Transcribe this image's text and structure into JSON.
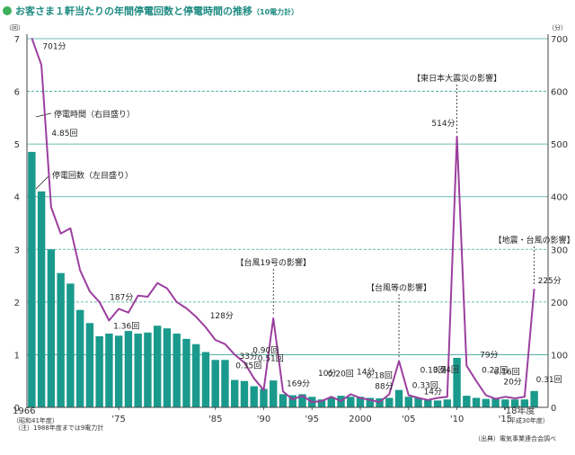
{
  "title": "お客さま１軒当たりの年間停電回数と停電時間の推移",
  "title_note": "（10電力計）",
  "left_unit": "（回）",
  "right_unit": "（分）",
  "note_bottom_left": "（注）1988年度までは9電力計",
  "source": "（出典）電気事業連合会調べ",
  "x_first_label": "1966",
  "x_first_sublabel": "（昭和41年度）",
  "x_last_label": "'18年度",
  "x_last_sublabel": "（平成30年度）",
  "series_labels": {
    "line": "停電時間（右目盛り）",
    "bars": "停電回数（左目盛り）"
  },
  "colors": {
    "bar": "#1a9a8c",
    "line": "#9b3f9e",
    "grid": "#3aa79b",
    "title_dot": "#3cb05a",
    "title": "#1f8c83"
  },
  "events": [
    {
      "label": "【台風19号の影響】",
      "year": 1991
    },
    {
      "label": "【台風等の影響】",
      "year": 2004
    },
    {
      "label": "【東日本大震災の影響】",
      "year": 2010
    },
    {
      "label": "【地震・台風の影響】",
      "year": 2018
    }
  ],
  "chart_data": {
    "type": "bar",
    "x": [
      1966,
      1967,
      1968,
      1969,
      1970,
      1971,
      1972,
      1973,
      1974,
      1975,
      1976,
      1977,
      1978,
      1979,
      1980,
      1981,
      1982,
      1983,
      1984,
      1985,
      1986,
      1987,
      1988,
      1989,
      1990,
      1991,
      1992,
      1993,
      1994,
      1995,
      1996,
      1997,
      1998,
      1999,
      2000,
      2001,
      2002,
      2003,
      2004,
      2005,
      2006,
      2007,
      2008,
      2009,
      2010,
      2011,
      2012,
      2013,
      2014,
      2015,
      2016,
      2017,
      2018
    ],
    "x_tick_labels": [
      {
        "year": 1975,
        "label": "'75"
      },
      {
        "year": 1985,
        "label": "'85"
      },
      {
        "year": 1990,
        "label": "'90"
      },
      {
        "year": 1995,
        "label": "'95"
      },
      {
        "year": 2000,
        "label": "2000"
      },
      {
        "year": 2005,
        "label": "'05"
      },
      {
        "year": 2010,
        "label": "'10"
      },
      {
        "year": 2015,
        "label": "'15"
      }
    ],
    "series": [
      {
        "name": "停電回数（左目盛り）",
        "axis": "left",
        "type": "bar",
        "values": [
          4.85,
          4.1,
          3.0,
          2.55,
          2.35,
          1.85,
          1.6,
          1.35,
          1.4,
          1.36,
          1.45,
          1.4,
          1.42,
          1.55,
          1.5,
          1.4,
          1.3,
          1.2,
          1.05,
          0.9,
          0.9,
          0.52,
          0.5,
          0.4,
          0.35,
          0.51,
          0.25,
          0.23,
          0.25,
          0.2,
          0.15,
          0.18,
          0.22,
          0.2,
          0.2,
          0.18,
          0.17,
          0.18,
          0.33,
          0.2,
          0.18,
          0.14,
          0.13,
          0.15,
          0.94,
          0.22,
          0.18,
          0.16,
          0.18,
          0.15,
          0.15,
          0.15,
          0.31
        ]
      },
      {
        "name": "停電時間（右目盛り）",
        "axis": "right",
        "type": "line",
        "values": [
          701,
          650,
          380,
          330,
          340,
          260,
          220,
          200,
          165,
          187,
          180,
          212,
          210,
          236,
          226,
          200,
          188,
          172,
          152,
          128,
          120,
          100,
          85,
          55,
          33,
          169,
          30,
          15,
          22,
          10,
          12,
          20,
          12,
          25,
          18,
          14,
          10,
          25,
          88,
          23,
          18,
          14,
          18,
          20,
          514,
          79,
          50,
          23,
          16,
          20,
          17,
          20,
          225
        ]
      }
    ],
    "data_labels": [
      {
        "series": "line",
        "year": 1966,
        "text": "701分"
      },
      {
        "series": "bars",
        "year": 1966,
        "text": "4.85回"
      },
      {
        "series": "line",
        "year": 1975,
        "text": "187分"
      },
      {
        "series": "bars",
        "year": 1975,
        "text": "1.36回"
      },
      {
        "series": "line",
        "year": 1985,
        "text": "128分"
      },
      {
        "series": "bars",
        "year": 1987,
        "text": "0.90回"
      },
      {
        "series": "bars",
        "year": 1989,
        "text": "0.51回"
      },
      {
        "series": "line",
        "year": 1989,
        "text": "33分"
      },
      {
        "series": "bars",
        "year": 1989,
        "text": "0.35回"
      },
      {
        "series": "line",
        "year": 1992,
        "text": "169分"
      },
      {
        "series": "line",
        "year": 1996,
        "text": "10分"
      },
      {
        "series": "bars",
        "year": 1997,
        "text": "0.20回"
      },
      {
        "series": "line",
        "year": 2000,
        "text": "14分"
      },
      {
        "series": "bars",
        "year": 2001,
        "text": "0.18回"
      },
      {
        "series": "line",
        "year": 2003,
        "text": "88分"
      },
      {
        "series": "bars",
        "year": 2005,
        "text": "0.33回"
      },
      {
        "series": "bars",
        "year": 2006,
        "text": "0.13回"
      },
      {
        "series": "line",
        "year": 2006,
        "text": "14分"
      },
      {
        "series": "bars",
        "year": 2009,
        "text": "0.94回"
      },
      {
        "series": "line",
        "year": 2010,
        "text": "514分"
      },
      {
        "series": "line",
        "year": 2012,
        "text": "79分"
      },
      {
        "series": "bars",
        "year": 2012,
        "text": "0.22回"
      },
      {
        "series": "bars",
        "year": 2014,
        "text": "0.16回"
      },
      {
        "series": "line",
        "year": 2015,
        "text": "20分"
      },
      {
        "series": "line",
        "year": 2018,
        "text": "225分"
      },
      {
        "series": "bars",
        "year": 2018,
        "text": "0.31回"
      }
    ],
    "left_axis": {
      "ylim": [
        0,
        7
      ],
      "ticks": [
        0,
        1,
        2,
        3,
        4,
        5,
        6,
        7
      ]
    },
    "right_axis": {
      "ylim": [
        0,
        700
      ],
      "ticks": [
        0,
        100,
        200,
        300,
        400,
        500,
        600,
        700
      ]
    },
    "grid": true,
    "legend": "inline"
  }
}
